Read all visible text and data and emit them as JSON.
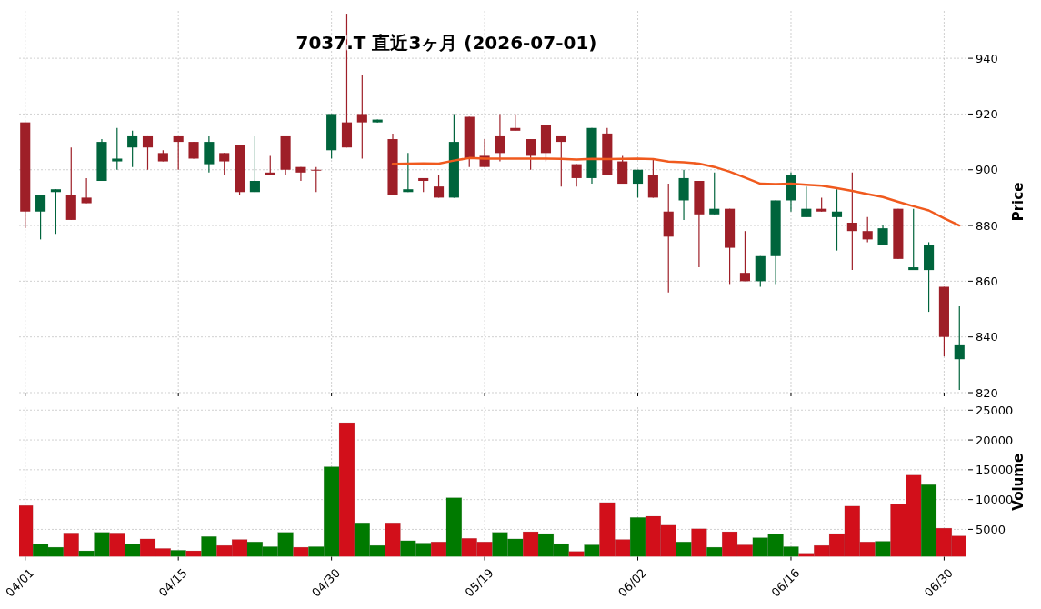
{
  "chart_data": [
    {
      "type": "candlestick",
      "title": "7037.T 直近3ヶ月 (2026-07-01)",
      "ylabel": "Price",
      "categories": [
        null,
        null,
        null,
        null,
        null,
        null,
        null,
        null,
        null,
        null,
        null,
        null,
        null,
        null,
        null,
        null,
        null,
        null,
        null,
        null,
        null,
        null,
        null,
        null,
        null,
        null,
        null,
        null,
        null,
        null,
        null,
        null,
        null,
        null,
        null,
        null,
        null,
        null,
        null,
        null,
        null,
        null,
        null,
        null,
        null,
        null,
        null,
        null,
        null,
        null,
        null,
        null,
        null,
        null,
        null,
        null,
        null,
        null,
        null,
        null,
        null,
        null
      ],
      "ohlc": [
        [
          917,
          917,
          879,
          885
        ],
        [
          885,
          891,
          875,
          891
        ],
        [
          892,
          893,
          877,
          893
        ],
        [
          891,
          908,
          882,
          882
        ],
        [
          890,
          897,
          888,
          888
        ],
        [
          896,
          911,
          896,
          910
        ],
        [
          903,
          915,
          900,
          904
        ],
        [
          908,
          914,
          901,
          912
        ],
        [
          912,
          912,
          900,
          908
        ],
        [
          906,
          907,
          903,
          903
        ],
        [
          912,
          912,
          900,
          910
        ],
        [
          910,
          910,
          904,
          904
        ],
        [
          902,
          912,
          899,
          910
        ],
        [
          906,
          906,
          898,
          903
        ],
        [
          909,
          909,
          891,
          892
        ],
        [
          892,
          912,
          892,
          896
        ],
        [
          899,
          905,
          898,
          898
        ],
        [
          912,
          912,
          898,
          900
        ],
        [
          901,
          901,
          896,
          899
        ],
        [
          900,
          901,
          892,
          900
        ],
        [
          907,
          920,
          904,
          920
        ],
        [
          917,
          956,
          908,
          908
        ],
        [
          920,
          934,
          904,
          917
        ],
        [
          917,
          918,
          917,
          918
        ],
        [
          911,
          913,
          891,
          891
        ],
        [
          892,
          906,
          892,
          893
        ],
        [
          897,
          897,
          892,
          896
        ],
        [
          894,
          898,
          890,
          890
        ],
        [
          890,
          920,
          890,
          910
        ],
        [
          919,
          919,
          901,
          904
        ],
        [
          905,
          911,
          901,
          901
        ],
        [
          912,
          920,
          903,
          906
        ],
        [
          915,
          920,
          914,
          914
        ],
        [
          911,
          911,
          900,
          905
        ],
        [
          916,
          916,
          903,
          906
        ],
        [
          912,
          912,
          894,
          910
        ],
        [
          902,
          902,
          894,
          897
        ],
        [
          897,
          915,
          895,
          915
        ],
        [
          913,
          915,
          898,
          898
        ],
        [
          903,
          905,
          895,
          895
        ],
        [
          895,
          900,
          890,
          900
        ],
        [
          898,
          904,
          890,
          890
        ],
        [
          885,
          895,
          856,
          876
        ],
        [
          889,
          900,
          882,
          897
        ],
        [
          896,
          896,
          865,
          884
        ],
        [
          884,
          899,
          884,
          886
        ],
        [
          886,
          886,
          859,
          872
        ],
        [
          863,
          878,
          860,
          860
        ],
        [
          860,
          869,
          858,
          869
        ],
        [
          869,
          889,
          859,
          889
        ],
        [
          889,
          899,
          885,
          898
        ],
        [
          883,
          894,
          883,
          886
        ],
        [
          886,
          890,
          885,
          885
        ],
        [
          883,
          893,
          871,
          885
        ],
        [
          881,
          899,
          864,
          878
        ],
        [
          878,
          883,
          874,
          875
        ],
        [
          873,
          880,
          873,
          879
        ],
        [
          886,
          886,
          868,
          868
        ],
        [
          864,
          886,
          864,
          865
        ],
        [
          864,
          874,
          849,
          873
        ],
        [
          858,
          858,
          833,
          840
        ],
        [
          832,
          851,
          821,
          837
        ]
      ],
      "colors": [
        "#9e1f28",
        "#00643c",
        "#00643c",
        "#9e1f28",
        "#9e1f28",
        "#00643c",
        "#00643c",
        "#00643c",
        "#9e1f28",
        "#9e1f28",
        "#9e1f28",
        "#9e1f28",
        "#00643c",
        "#9e1f28",
        "#9e1f28",
        "#00643c",
        "#9e1f28",
        "#9e1f28",
        "#9e1f28",
        "#9e1f28",
        "#00643c",
        "#9e1f28",
        "#9e1f28",
        "#00643c",
        "#9e1f28",
        "#00643c",
        "#9e1f28",
        "#9e1f28",
        "#00643c",
        "#9e1f28",
        "#9e1f28",
        "#9e1f28",
        "#9e1f28",
        "#9e1f28",
        "#9e1f28",
        "#9e1f28",
        "#9e1f28",
        "#00643c",
        "#9e1f28",
        "#9e1f28",
        "#00643c",
        "#9e1f28",
        "#9e1f28",
        "#00643c",
        "#9e1f28",
        "#00643c",
        "#9e1f28",
        "#9e1f28",
        "#00643c",
        "#00643c",
        "#00643c",
        "#00643c",
        "#9e1f28",
        "#00643c",
        "#9e1f28",
        "#9e1f28",
        "#00643c",
        "#9e1f28",
        "#00643c",
        "#00643c",
        "#9e1f28",
        "#00643c"
      ],
      "series": [
        {
          "type": "line",
          "color": "#f05a1e",
          "values": [
            null,
            null,
            null,
            null,
            null,
            null,
            null,
            null,
            null,
            null,
            null,
            null,
            null,
            null,
            null,
            null,
            null,
            null,
            null,
            null,
            null,
            null,
            null,
            null,
            902.1,
            902.2,
            902.3,
            902.2,
            903.3,
            904.2,
            904,
            904,
            904,
            904,
            904,
            903.9,
            903.7,
            903.9,
            903.8,
            903.9,
            904,
            903.8,
            902.9,
            902.7,
            902.2,
            901,
            899.3,
            897.2,
            895,
            894.9,
            895,
            894.6,
            894.3,
            893.4,
            892.4,
            891.3,
            890.2,
            888.5,
            886.9,
            885.4,
            882.6,
            880
          ]
        }
      ],
      "ylim": [
        820,
        957
      ],
      "yticks": [
        820,
        840,
        860,
        880,
        900,
        920,
        940
      ],
      "grid": true,
      "tick_labels": "y"
    },
    {
      "type": "bar",
      "ylabel": "Volume",
      "categories": [
        "04/01",
        null,
        null,
        null,
        null,
        null,
        null,
        null,
        null,
        null,
        "04/15",
        null,
        null,
        null,
        null,
        null,
        null,
        null,
        null,
        null,
        "04/30",
        null,
        null,
        null,
        null,
        null,
        null,
        null,
        null,
        null,
        "05/19",
        null,
        null,
        null,
        null,
        null,
        null,
        null,
        null,
        null,
        "06/02",
        null,
        null,
        null,
        null,
        null,
        null,
        null,
        null,
        null,
        "06/16",
        null,
        null,
        null,
        null,
        null,
        null,
        null,
        null,
        null,
        "06/30",
        null
      ],
      "values": [
        9000,
        2500,
        2000,
        4400,
        1400,
        4500,
        4400,
        2500,
        3400,
        1800,
        1500,
        1400,
        3800,
        2300,
        3300,
        2900,
        2100,
        4500,
        2000,
        2100,
        15500,
        22900,
        6100,
        2300,
        6100,
        3100,
        2700,
        2900,
        10300,
        3500,
        2900,
        4500,
        3400,
        4600,
        4300,
        2600,
        1300,
        2400,
        9500,
        3300,
        7000,
        7200,
        5700,
        2900,
        5100,
        2000,
        4600,
        2400,
        3600,
        4200,
        2100,
        1000,
        2300,
        4300,
        8900,
        2900,
        3000,
        9200,
        14100,
        12500,
        5200,
        3900
      ],
      "colors": [
        "#d20f1a",
        "#007a00",
        "#007a00",
        "#d20f1a",
        "#007a00",
        "#007a00",
        "#d20f1a",
        "#007a00",
        "#d20f1a",
        "#d20f1a",
        "#007a00",
        "#d20f1a",
        "#007a00",
        "#d20f1a",
        "#d20f1a",
        "#007a00",
        "#007a00",
        "#007a00",
        "#d20f1a",
        "#007a00",
        "#007a00",
        "#d20f1a",
        "#007a00",
        "#007a00",
        "#d20f1a",
        "#007a00",
        "#007a00",
        "#d20f1a",
        "#007a00",
        "#d20f1a",
        "#d20f1a",
        "#007a00",
        "#007a00",
        "#d20f1a",
        "#007a00",
        "#007a00",
        "#d20f1a",
        "#007a00",
        "#d20f1a",
        "#d20f1a",
        "#007a00",
        "#d20f1a",
        "#d20f1a",
        "#007a00",
        "#d20f1a",
        "#007a00",
        "#d20f1a",
        "#d20f1a",
        "#007a00",
        "#007a00",
        "#007a00",
        "#d20f1a",
        "#d20f1a",
        "#d20f1a",
        "#d20f1a",
        "#d20f1a",
        "#007a00",
        "#d20f1a",
        "#d20f1a",
        "#007a00",
        "#d20f1a",
        "#d20f1a"
      ],
      "ylim": [
        400,
        25500
      ],
      "yticks": [
        5000,
        10000,
        15000,
        20000,
        25000
      ],
      "grid": true
    }
  ]
}
